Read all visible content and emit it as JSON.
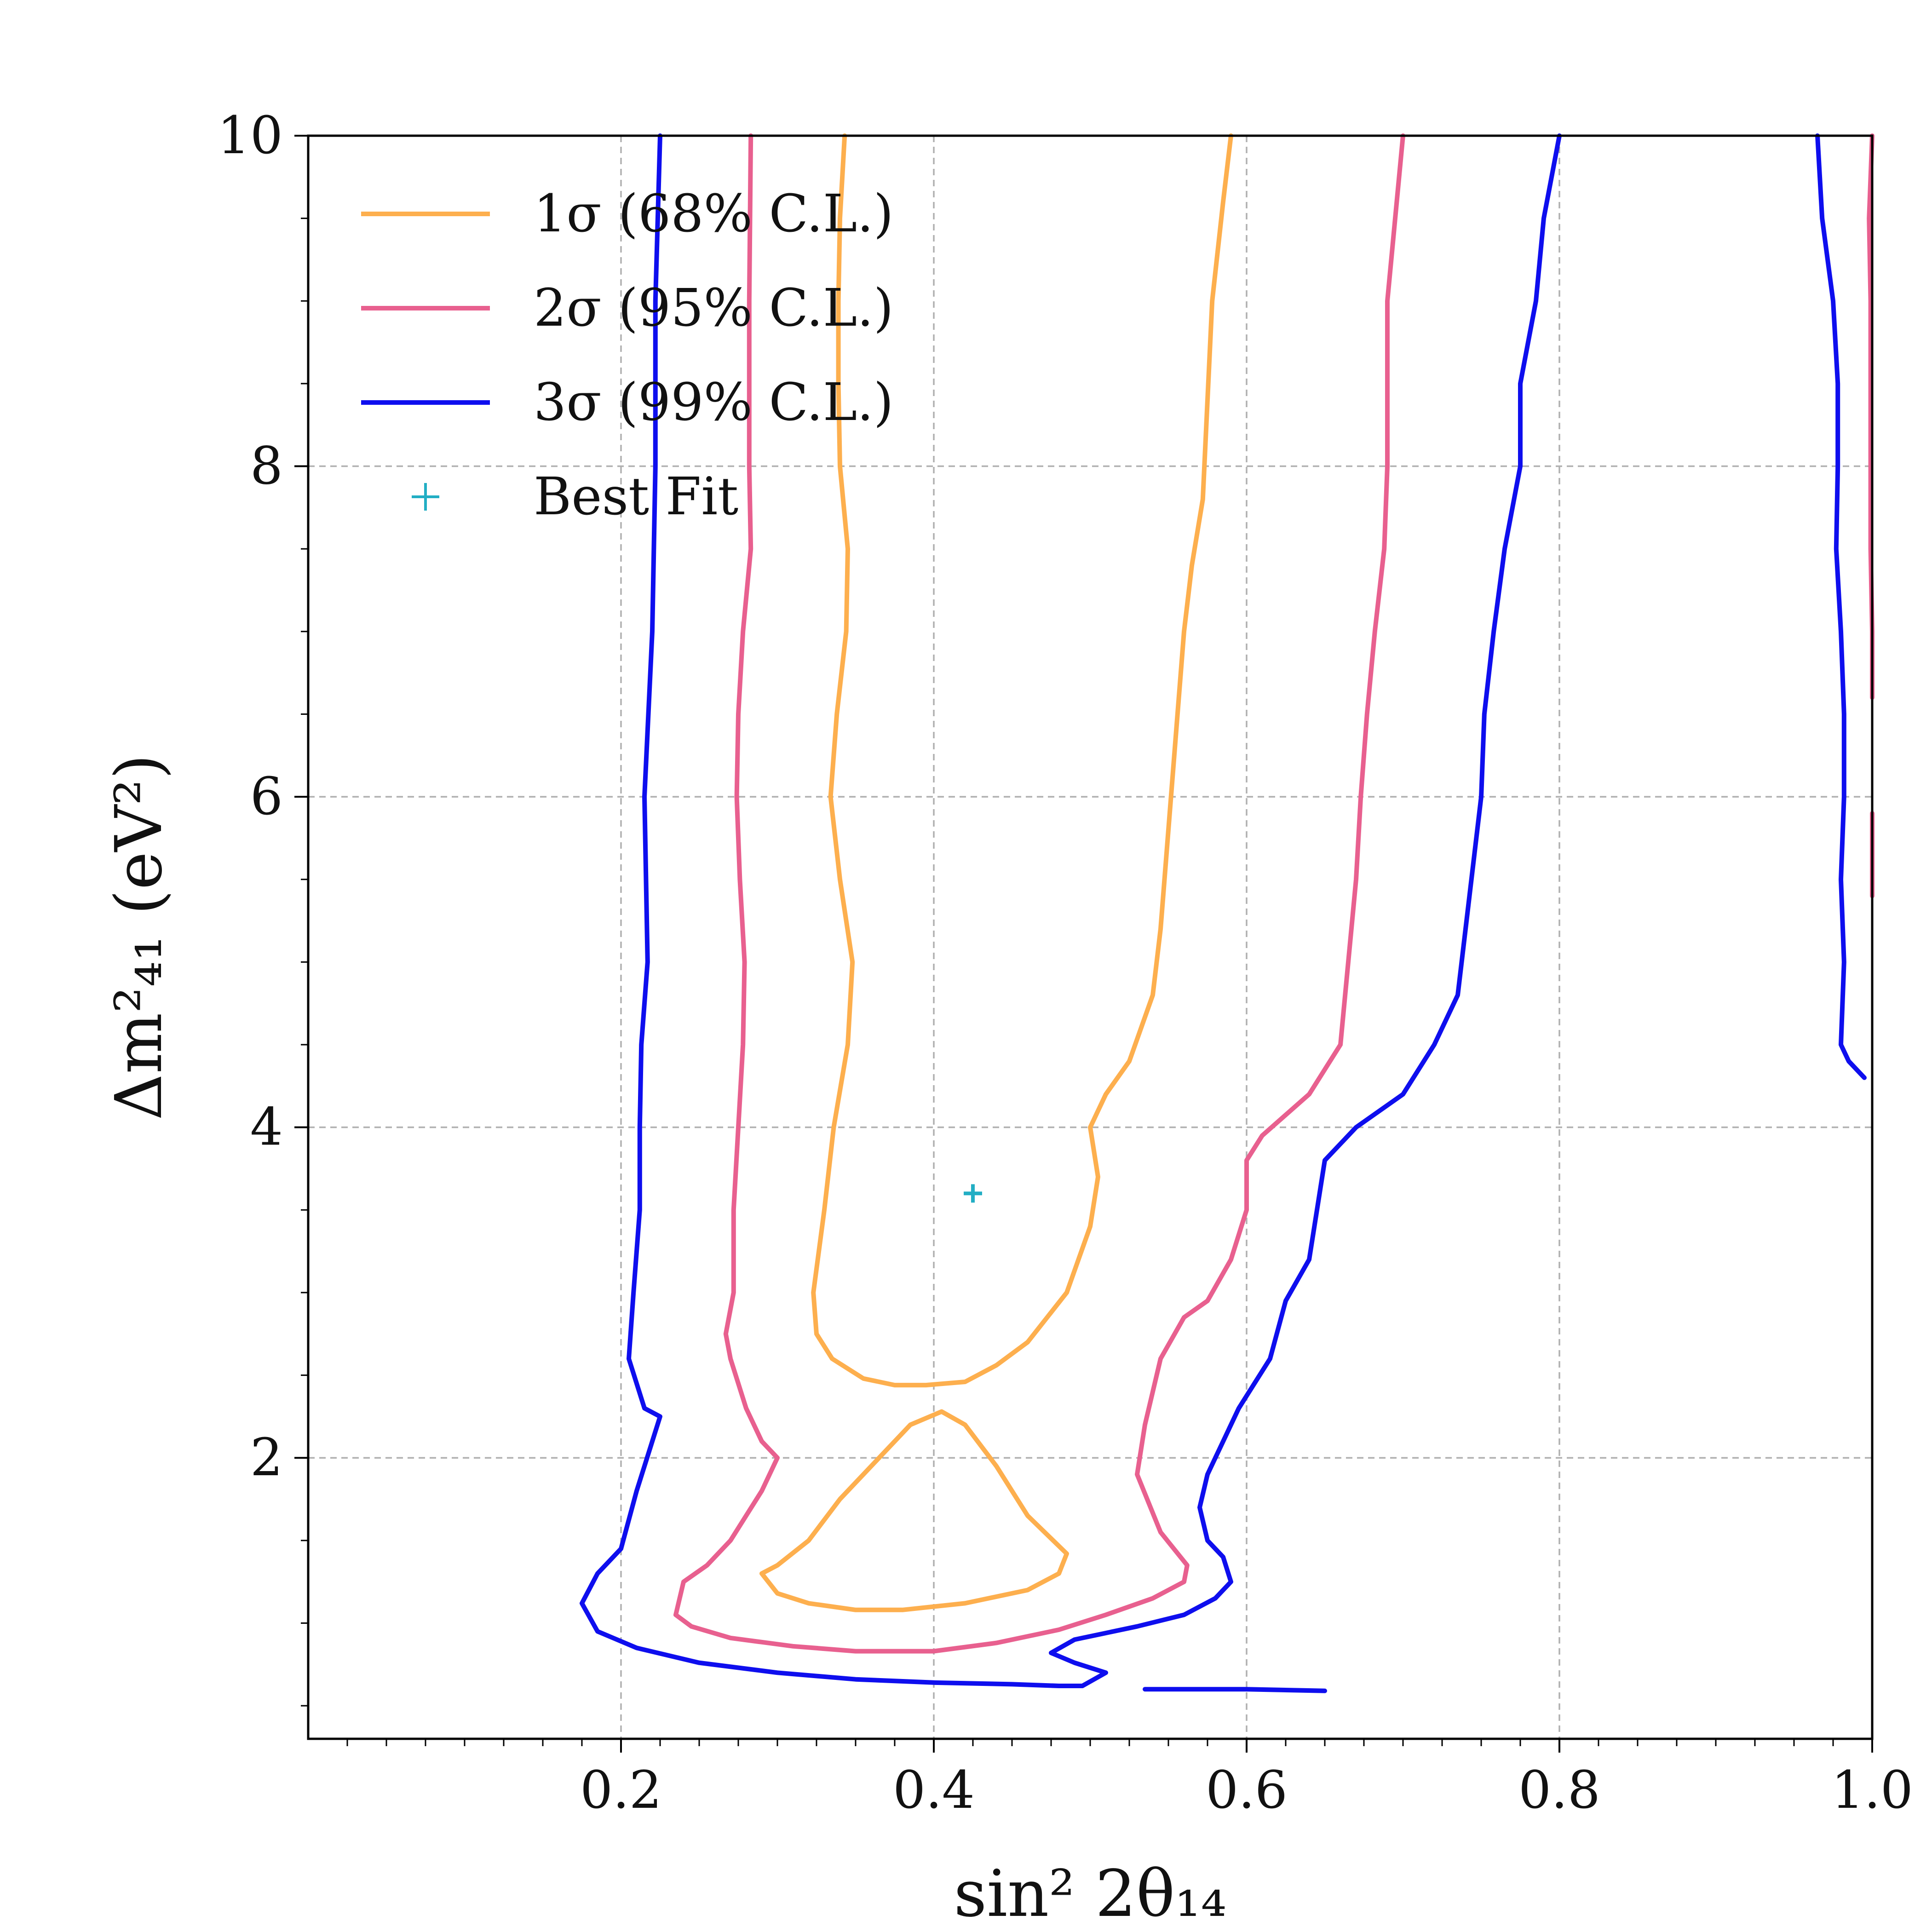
{
  "chart_data": {
    "type": "line",
    "xlabel": "sin² 2θ₁₄",
    "ylabel": "Δm²₄₁ (eV²)",
    "xlim": [
      0.0,
      1.0
    ],
    "ylim": [
      0.3,
      10.0
    ],
    "grid": true,
    "legend_placement": "top-left",
    "x_ticks": [
      {
        "value": 0.2,
        "label": "0.2"
      },
      {
        "value": 0.4,
        "label": "0.4"
      },
      {
        "value": 0.6,
        "label": "0.6"
      },
      {
        "value": 0.8,
        "label": "0.8"
      },
      {
        "value": 1.0,
        "label": "1.0"
      }
    ],
    "y_ticks": [
      {
        "value": 2,
        "label": "2"
      },
      {
        "value": 4,
        "label": "4"
      },
      {
        "value": 6,
        "label": "6"
      },
      {
        "value": 8,
        "label": "8"
      },
      {
        "value": 10,
        "label": "10"
      }
    ],
    "series": [
      {
        "name": "1σ (68% C.L.)",
        "color": "#FDAF4E",
        "segments": [
          [
            [
              0.343,
              10.0
            ],
            [
              0.34,
              9.5
            ],
            [
              0.339,
              9.0
            ],
            [
              0.339,
              8.5
            ],
            [
              0.34,
              8.0
            ],
            [
              0.345,
              7.5
            ],
            [
              0.344,
              7.0
            ],
            [
              0.338,
              6.5
            ],
            [
              0.334,
              6.0
            ],
            [
              0.34,
              5.5
            ],
            [
              0.348,
              5.0
            ],
            [
              0.345,
              4.5
            ],
            [
              0.336,
              4.0
            ],
            [
              0.33,
              3.5
            ],
            [
              0.323,
              3.0
            ],
            [
              0.325,
              2.75
            ],
            [
              0.335,
              2.6
            ],
            [
              0.355,
              2.48
            ],
            [
              0.375,
              2.44
            ],
            [
              0.395,
              2.44
            ],
            [
              0.42,
              2.46
            ],
            [
              0.44,
              2.56
            ],
            [
              0.46,
              2.7
            ],
            [
              0.485,
              3.0
            ],
            [
              0.5,
              3.4
            ],
            [
              0.505,
              3.7
            ],
            [
              0.5,
              4.0
            ],
            [
              0.51,
              4.2
            ],
            [
              0.525,
              4.4
            ],
            [
              0.54,
              4.8
            ],
            [
              0.545,
              5.2
            ],
            [
              0.55,
              5.8
            ],
            [
              0.555,
              6.4
            ],
            [
              0.56,
              7.0
            ],
            [
              0.565,
              7.4
            ],
            [
              0.572,
              7.8
            ],
            [
              0.575,
              8.4
            ],
            [
              0.578,
              9.0
            ],
            [
              0.585,
              9.6
            ],
            [
              0.59,
              10.0
            ]
          ],
          [
            [
              0.29,
              1.3
            ],
            [
              0.3,
              1.35
            ],
            [
              0.32,
              1.5
            ],
            [
              0.34,
              1.75
            ],
            [
              0.36,
              1.95
            ],
            [
              0.385,
              2.2
            ],
            [
              0.405,
              2.28
            ],
            [
              0.42,
              2.2
            ],
            [
              0.44,
              1.95
            ],
            [
              0.46,
              1.65
            ],
            [
              0.485,
              1.42
            ],
            [
              0.48,
              1.3
            ],
            [
              0.46,
              1.2
            ],
            [
              0.42,
              1.12
            ],
            [
              0.38,
              1.08
            ],
            [
              0.35,
              1.08
            ],
            [
              0.32,
              1.12
            ],
            [
              0.3,
              1.18
            ],
            [
              0.29,
              1.3
            ]
          ]
        ]
      },
      {
        "name": "2σ (95% C.L.)",
        "color": "#E8608F",
        "segments": [
          [
            [
              0.283,
              10.0
            ],
            [
              0.282,
              9.0
            ],
            [
              0.282,
              8.0
            ],
            [
              0.283,
              7.5
            ],
            [
              0.278,
              7.0
            ],
            [
              0.275,
              6.5
            ],
            [
              0.274,
              6.0
            ],
            [
              0.276,
              5.5
            ],
            [
              0.279,
              5.0
            ],
            [
              0.278,
              4.5
            ],
            [
              0.275,
              4.0
            ],
            [
              0.272,
              3.5
            ],
            [
              0.272,
              3.0
            ],
            [
              0.267,
              2.75
            ],
            [
              0.27,
              2.6
            ],
            [
              0.28,
              2.3
            ],
            [
              0.29,
              2.1
            ],
            [
              0.3,
              2.0
            ],
            [
              0.29,
              1.8
            ],
            [
              0.27,
              1.5
            ],
            [
              0.255,
              1.35
            ],
            [
              0.24,
              1.25
            ],
            [
              0.235,
              1.05
            ],
            [
              0.245,
              0.98
            ],
            [
              0.27,
              0.91
            ],
            [
              0.31,
              0.86
            ],
            [
              0.35,
              0.83
            ],
            [
              0.4,
              0.83
            ],
            [
              0.44,
              0.88
            ],
            [
              0.48,
              0.96
            ],
            [
              0.51,
              1.05
            ],
            [
              0.54,
              1.15
            ],
            [
              0.56,
              1.25
            ],
            [
              0.562,
              1.35
            ],
            [
              0.545,
              1.55
            ],
            [
              0.53,
              1.9
            ],
            [
              0.535,
              2.2
            ],
            [
              0.545,
              2.6
            ],
            [
              0.56,
              2.85
            ],
            [
              0.575,
              2.95
            ],
            [
              0.59,
              3.2
            ],
            [
              0.6,
              3.5
            ],
            [
              0.6,
              3.8
            ],
            [
              0.61,
              3.95
            ],
            [
              0.64,
              4.2
            ],
            [
              0.66,
              4.5
            ],
            [
              0.665,
              5.0
            ],
            [
              0.67,
              5.5
            ],
            [
              0.673,
              6.0
            ],
            [
              0.677,
              6.5
            ],
            [
              0.682,
              7.0
            ],
            [
              0.688,
              7.5
            ],
            [
              0.69,
              8.0
            ],
            [
              0.69,
              9.0
            ],
            [
              0.695,
              9.5
            ],
            [
              0.7,
              10.0
            ]
          ],
          [
            [
              1.0,
              10.0
            ],
            [
              0.998,
              9.5
            ],
            [
              0.999,
              9.0
            ],
            [
              0.999,
              8.0
            ],
            [
              0.999,
              7.5
            ],
            [
              1.0,
              7.0
            ],
            [
              1.0,
              6.6
            ]
          ],
          [
            [
              1.0,
              5.9
            ],
            [
              1.0,
              5.4
            ]
          ]
        ]
      },
      {
        "name": "3σ (99% C.L.)",
        "color": "#0E0EEE",
        "segments": [
          [
            [
              0.225,
              10.0
            ],
            [
              0.222,
              9.0
            ],
            [
              0.222,
              8.0
            ],
            [
              0.22,
              7.0
            ],
            [
              0.215,
              6.0
            ],
            [
              0.217,
              5.0
            ],
            [
              0.213,
              4.5
            ],
            [
              0.212,
              4.0
            ],
            [
              0.212,
              3.5
            ],
            [
              0.208,
              3.0
            ],
            [
              0.205,
              2.6
            ],
            [
              0.215,
              2.3
            ],
            [
              0.225,
              2.25
            ],
            [
              0.21,
              1.8
            ],
            [
              0.2,
              1.45
            ],
            [
              0.185,
              1.3
            ],
            [
              0.175,
              1.12
            ],
            [
              0.185,
              0.95
            ],
            [
              0.21,
              0.85
            ],
            [
              0.25,
              0.76
            ],
            [
              0.3,
              0.7
            ],
            [
              0.35,
              0.66
            ],
            [
              0.4,
              0.64
            ],
            [
              0.45,
              0.63
            ],
            [
              0.48,
              0.62
            ],
            [
              0.495,
              0.62
            ],
            [
              0.51,
              0.7
            ],
            [
              0.49,
              0.76
            ],
            [
              0.475,
              0.82
            ],
            [
              0.49,
              0.9
            ],
            [
              0.53,
              0.98
            ],
            [
              0.56,
              1.05
            ],
            [
              0.58,
              1.15
            ],
            [
              0.59,
              1.25
            ],
            [
              0.585,
              1.4
            ],
            [
              0.575,
              1.5
            ],
            [
              0.57,
              1.7
            ],
            [
              0.575,
              1.9
            ],
            [
              0.595,
              2.3
            ],
            [
              0.615,
              2.6
            ],
            [
              0.625,
              2.95
            ],
            [
              0.64,
              3.2
            ],
            [
              0.645,
              3.5
            ],
            [
              0.65,
              3.8
            ],
            [
              0.67,
              4.0
            ],
            [
              0.7,
              4.2
            ],
            [
              0.72,
              4.5
            ],
            [
              0.735,
              4.8
            ],
            [
              0.74,
              5.2
            ],
            [
              0.745,
              5.6
            ],
            [
              0.75,
              6.0
            ],
            [
              0.752,
              6.5
            ],
            [
              0.758,
              7.0
            ],
            [
              0.765,
              7.5
            ],
            [
              0.775,
              8.0
            ],
            [
              0.775,
              8.5
            ],
            [
              0.785,
              9.0
            ],
            [
              0.79,
              9.5
            ],
            [
              0.8,
              10.0
            ]
          ],
          [
            [
              0.535,
              0.6
            ],
            [
              0.56,
              0.6
            ],
            [
              0.6,
              0.6
            ],
            [
              0.65,
              0.59
            ]
          ],
          [
            [
              0.965,
              10.0
            ],
            [
              0.968,
              9.5
            ],
            [
              0.975,
              9.0
            ],
            [
              0.978,
              8.5
            ],
            [
              0.978,
              8.0
            ],
            [
              0.977,
              7.5
            ],
            [
              0.98,
              7.0
            ],
            [
              0.982,
              6.5
            ],
            [
              0.982,
              6.0
            ],
            [
              0.98,
              5.5
            ],
            [
              0.982,
              5.0
            ],
            [
              0.98,
              4.5
            ],
            [
              0.985,
              4.4
            ],
            [
              0.995,
              4.3
            ]
          ]
        ]
      }
    ],
    "best_fit": {
      "name": "Best Fit",
      "x": 0.425,
      "y": 3.6,
      "color": "#22AEC4"
    }
  }
}
